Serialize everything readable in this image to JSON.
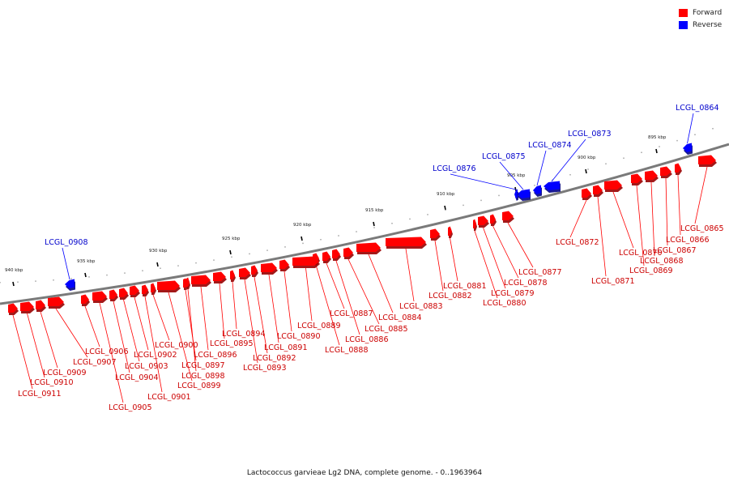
{
  "legend": [
    {
      "label": "Forward",
      "color": "#ff0000"
    },
    {
      "label": "Reverse",
      "color": "#0000ff"
    }
  ],
  "caption": "Lactococcus garvieae Lg2 DNA, complete genome. - 0..1963964",
  "colors": {
    "forward": "#ff0000",
    "reverse": "#0000ff",
    "backbone": "#7a7a7a",
    "label_forward": "#cc0000",
    "label_reverse": "#0000cc"
  },
  "scale_labels": [
    "940 kbp",
    "935 kbp",
    "930 kbp",
    "925 kbp",
    "920 kbp",
    "915 kbp",
    "910 kbp",
    "905 kbp",
    "900 kbp",
    "895 kbp"
  ],
  "genes": [
    {
      "name": "LCGL_0864",
      "strand": "reverse"
    },
    {
      "name": "LCGL_0865",
      "strand": "forward"
    },
    {
      "name": "LCGL_0866",
      "strand": "forward"
    },
    {
      "name": "LCGL_0867",
      "strand": "forward"
    },
    {
      "name": "LCGL_0868",
      "strand": "forward"
    },
    {
      "name": "LCGL_0869",
      "strand": "forward"
    },
    {
      "name": "LCGL_0870",
      "strand": "forward"
    },
    {
      "name": "LCGL_0871",
      "strand": "forward"
    },
    {
      "name": "LCGL_0872",
      "strand": "forward"
    },
    {
      "name": "LCGL_0873",
      "strand": "reverse"
    },
    {
      "name": "LCGL_0874",
      "strand": "reverse"
    },
    {
      "name": "LCGL_0875",
      "strand": "reverse"
    },
    {
      "name": "LCGL_0876",
      "strand": "reverse"
    },
    {
      "name": "LCGL_0877",
      "strand": "forward"
    },
    {
      "name": "LCGL_0878",
      "strand": "forward"
    },
    {
      "name": "LCGL_0879",
      "strand": "forward"
    },
    {
      "name": "LCGL_0880",
      "strand": "forward"
    },
    {
      "name": "LCGL_0881",
      "strand": "forward"
    },
    {
      "name": "LCGL_0882",
      "strand": "forward"
    },
    {
      "name": "LCGL_0883",
      "strand": "forward"
    },
    {
      "name": "LCGL_0884",
      "strand": "forward"
    },
    {
      "name": "LCGL_0885",
      "strand": "forward"
    },
    {
      "name": "LCGL_0886",
      "strand": "forward"
    },
    {
      "name": "LCGL_0887",
      "strand": "forward"
    },
    {
      "name": "LCGL_0888",
      "strand": "forward"
    },
    {
      "name": "LCGL_0889",
      "strand": "forward"
    },
    {
      "name": "LCGL_0890",
      "strand": "forward"
    },
    {
      "name": "LCGL_0891",
      "strand": "forward"
    },
    {
      "name": "LCGL_0892",
      "strand": "forward"
    },
    {
      "name": "LCGL_0893",
      "strand": "forward"
    },
    {
      "name": "LCGL_0894",
      "strand": "forward"
    },
    {
      "name": "LCGL_0895",
      "strand": "forward"
    },
    {
      "name": "LCGL_0896",
      "strand": "forward"
    },
    {
      "name": "LCGL_0897",
      "strand": "forward"
    },
    {
      "name": "LCGL_0898",
      "strand": "forward"
    },
    {
      "name": "LCGL_0899",
      "strand": "forward"
    },
    {
      "name": "LCGL_0900",
      "strand": "forward"
    },
    {
      "name": "LCGL_0901",
      "strand": "forward"
    },
    {
      "name": "LCGL_0902",
      "strand": "forward"
    },
    {
      "name": "LCGL_0903",
      "strand": "forward"
    },
    {
      "name": "LCGL_0904",
      "strand": "forward"
    },
    {
      "name": "LCGL_0905",
      "strand": "forward"
    },
    {
      "name": "LCGL_0906",
      "strand": "forward"
    },
    {
      "name": "LCGL_0907",
      "strand": "forward"
    },
    {
      "name": "LCGL_0908",
      "strand": "reverse"
    },
    {
      "name": "LCGL_0909",
      "strand": "forward"
    },
    {
      "name": "LCGL_0910",
      "strand": "forward"
    },
    {
      "name": "LCGL_0911",
      "strand": "forward"
    }
  ]
}
